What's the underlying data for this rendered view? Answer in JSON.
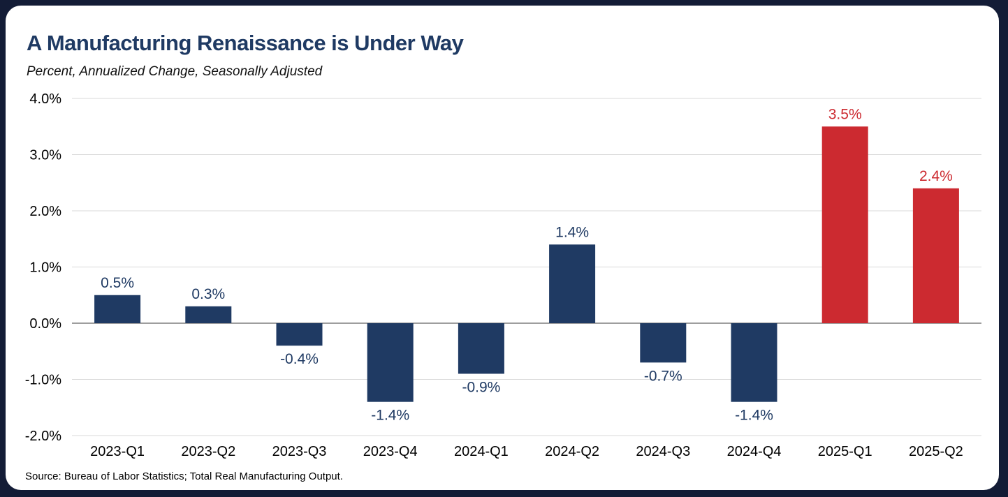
{
  "chart_data": {
    "type": "bar",
    "title": "A Manufacturing Renaissance is Under Way",
    "subtitle": "Percent, Annualized Change, Seasonally Adjusted",
    "categories": [
      "2023-Q1",
      "2023-Q2",
      "2023-Q3",
      "2023-Q4",
      "2024-Q1",
      "2024-Q2",
      "2024-Q3",
      "2024-Q4",
      "2025-Q1",
      "2025-Q2"
    ],
    "values": [
      0.5,
      0.3,
      -0.4,
      -1.4,
      -0.9,
      1.4,
      -0.7,
      -1.4,
      3.5,
      2.4
    ],
    "value_labels": [
      "0.5%",
      "0.3%",
      "-0.4%",
      "-1.4%",
      "-0.9%",
      "1.4%",
      "-0.7%",
      "-1.4%",
      "3.5%",
      "2.4%"
    ],
    "bar_colors": [
      "navy",
      "navy",
      "navy",
      "navy",
      "navy",
      "navy",
      "navy",
      "navy",
      "red",
      "red"
    ],
    "xlabel": "",
    "ylabel": "",
    "ylim": [
      -2,
      4
    ],
    "yticks": [
      {
        "value": 4,
        "label": "4.0%"
      },
      {
        "value": 3,
        "label": "3.0%"
      },
      {
        "value": 2,
        "label": "2.0%"
      },
      {
        "value": 1,
        "label": "1.0%"
      },
      {
        "value": 0,
        "label": "0.0%"
      },
      {
        "value": -1,
        "label": "-1.0%"
      },
      {
        "value": -2,
        "label": "-2.0%"
      }
    ],
    "grid": true,
    "legend": "none",
    "colors": {
      "navy": "#1F3A63",
      "red": "#CC2A30",
      "gridline": "#D9D9D9",
      "zero_line": "#7F7F7F",
      "tick_text": "#000000",
      "title_text": "#1F3A63",
      "frame_background": "#131C36",
      "card_background": "#FFFFFF"
    }
  },
  "footer": {
    "source_note": "Source: Bureau of Labor Statistics; Total Real Manufacturing Output."
  }
}
